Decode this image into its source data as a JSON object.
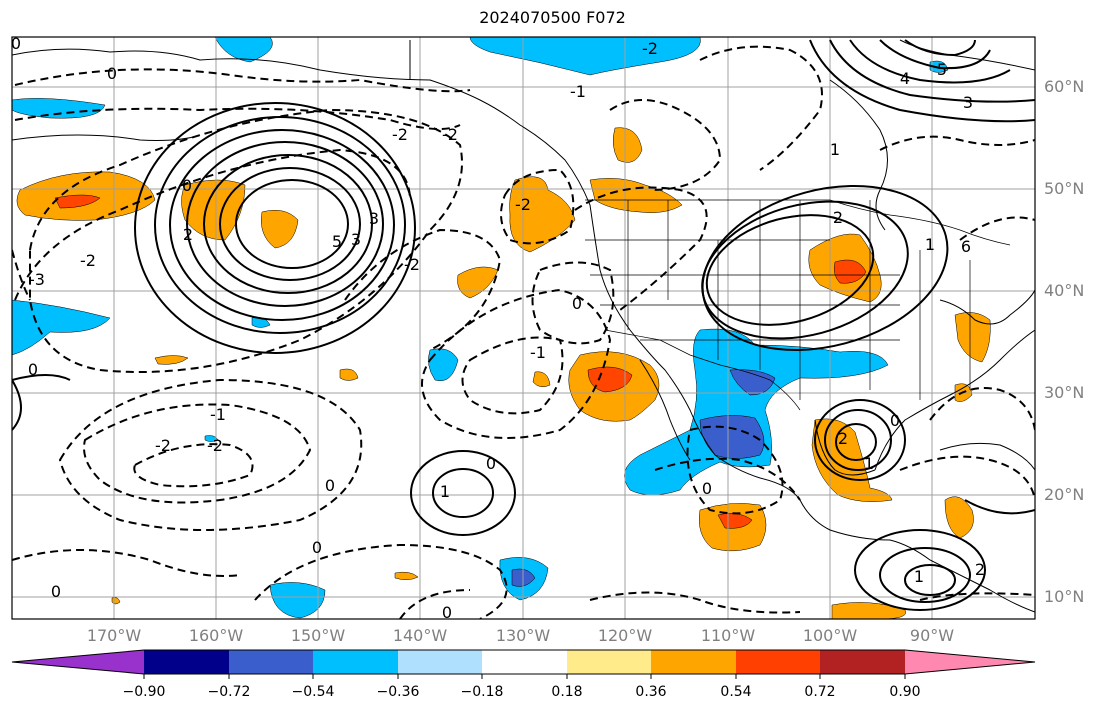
{
  "title": "2024070500 F072",
  "map": {
    "region": "North Pacific and North America",
    "lat_labels": [
      "60°N",
      "50°N",
      "40°N",
      "30°N",
      "20°N",
      "10°N"
    ],
    "lon_labels": [
      "170°W",
      "160°W",
      "150°W",
      "140°W",
      "130°W",
      "120°W",
      "110°W",
      "100°W",
      "90°W"
    ],
    "contour_labels": [
      "0",
      "0",
      "0",
      "0",
      "0",
      "0",
      "0",
      "0",
      "0",
      "0",
      "0",
      "0",
      "-1",
      "-1",
      "-1",
      "-2",
      "-2",
      "-2",
      "-2",
      "-2",
      "-2",
      "-2",
      "-2",
      "-3",
      "1",
      "1",
      "1",
      "1",
      "1",
      "2",
      "2",
      "2",
      "2",
      "3",
      "3",
      "3",
      "4",
      "5",
      "5",
      "6"
    ],
    "shading_colors": {
      "neg_light": "#aee0ff",
      "neg": "#00bfff",
      "neg_mid": "#3a5fcd",
      "pos_light": "#ffe680",
      "pos": "#ffa500",
      "pos_mid": "#ff4500"
    }
  },
  "colorbar": {
    "labels": [
      "−0.90",
      "−0.72",
      "−0.54",
      "−0.36",
      "−0.18",
      "0.18",
      "0.36",
      "0.54",
      "0.72",
      "0.90"
    ],
    "colors": [
      "#9932cc",
      "#00008b",
      "#3a5fcd",
      "#00bfff",
      "#afe1ff",
      "#ffffff",
      "#ffeb8a",
      "#ffa500",
      "#ff4000",
      "#b22222",
      "#ff88b0"
    ]
  }
}
